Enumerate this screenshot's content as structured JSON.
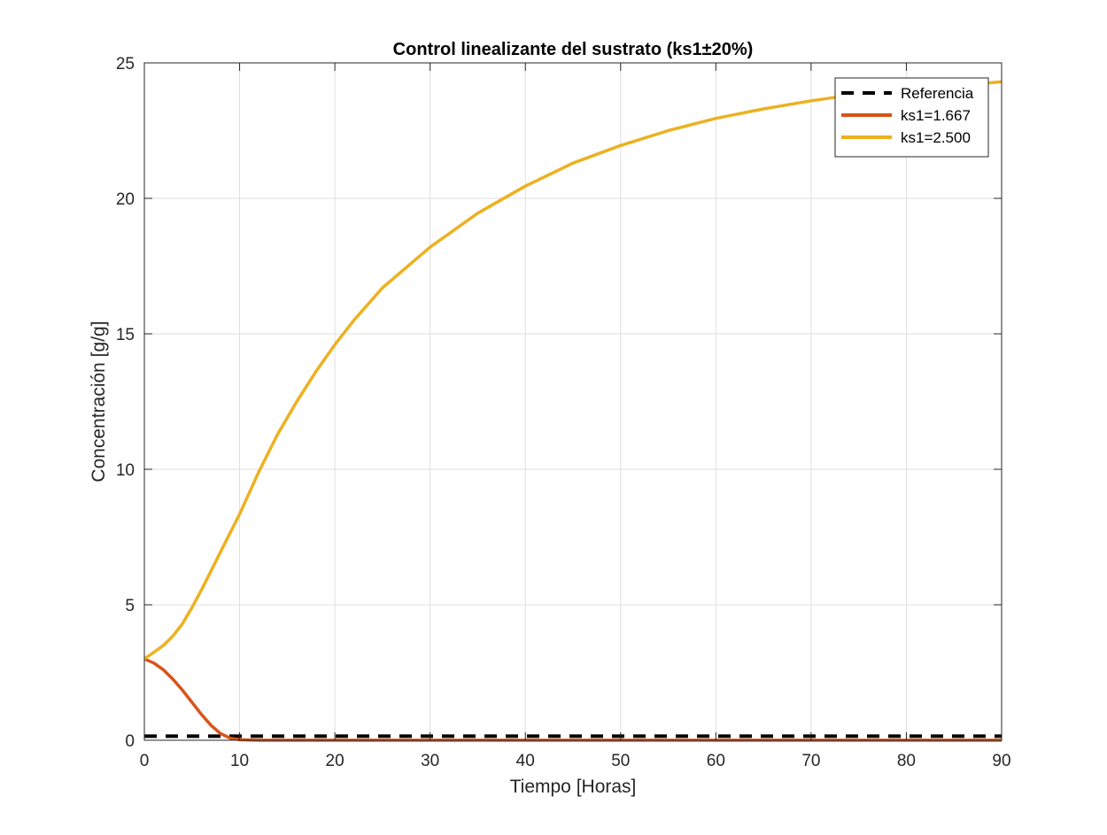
{
  "chart_data": {
    "type": "line",
    "title": "Control linealizante del sustrato (ks1±20%)",
    "xlabel": "Tiempo [Horas]",
    "ylabel": "Concentración [g/g]",
    "xlim": [
      0,
      90
    ],
    "ylim": [
      0,
      25
    ],
    "xticks": [
      0,
      10,
      20,
      30,
      40,
      50,
      60,
      70,
      80,
      90
    ],
    "yticks": [
      0,
      5,
      10,
      15,
      20,
      25
    ],
    "grid": true,
    "legend_position": "top-right",
    "series": [
      {
        "name": "Referencia",
        "color": "#000000",
        "style": "dashed",
        "x": [
          0,
          90
        ],
        "y": [
          0.15,
          0.15
        ]
      },
      {
        "name": "ks1=1.667",
        "color": "#D95319",
        "style": "solid",
        "x": [
          0,
          1,
          2,
          3,
          4,
          5,
          6,
          7,
          8,
          9,
          10,
          11,
          12,
          15,
          20,
          30,
          40,
          50,
          60,
          70,
          80,
          90
        ],
        "y": [
          3.0,
          2.85,
          2.6,
          2.25,
          1.85,
          1.4,
          0.95,
          0.55,
          0.25,
          0.08,
          0.02,
          0.005,
          0.0,
          0.0,
          0.0,
          0.0,
          0.0,
          0.0,
          0.0,
          0.0,
          0.0,
          0.0
        ]
      },
      {
        "name": "ks1=2.500",
        "color": "#EDB120",
        "style": "solid",
        "x": [
          0,
          1,
          2,
          3,
          4,
          5,
          6,
          7,
          8,
          9,
          10,
          12,
          14,
          16,
          18,
          20,
          22,
          25,
          28,
          30,
          35,
          40,
          45,
          50,
          55,
          60,
          65,
          70,
          75,
          80,
          85,
          90
        ],
        "y": [
          3.0,
          3.25,
          3.5,
          3.85,
          4.3,
          4.9,
          5.55,
          6.25,
          6.95,
          7.65,
          8.35,
          9.9,
          11.3,
          12.5,
          13.6,
          14.6,
          15.5,
          16.7,
          17.6,
          18.2,
          19.45,
          20.45,
          21.3,
          21.95,
          22.5,
          22.95,
          23.3,
          23.6,
          23.85,
          24.0,
          24.15,
          24.3
        ]
      }
    ]
  }
}
